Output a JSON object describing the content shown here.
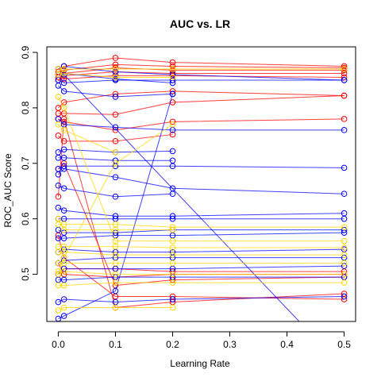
{
  "chart_data": {
    "type": "line",
    "title": "AUC vs. LR",
    "xlabel": "Learning Rate",
    "ylabel": "ROC_AUC Score",
    "xlim": [
      -0.02,
      0.52
    ],
    "ylim": [
      0.415,
      0.91
    ],
    "x_ticks": [
      0.0,
      0.1,
      0.2,
      0.3,
      0.4,
      0.5
    ],
    "x_tick_labels": [
      "0.0",
      "0.1",
      "0.2",
      "0.3",
      "0.4",
      "0.5"
    ],
    "y_ticks": [
      0.5,
      0.6,
      0.7,
      0.8,
      0.9
    ],
    "y_tick_labels": [
      "0.5",
      "0.6",
      "0.7",
      "0.8",
      "0.9"
    ],
    "grid": false,
    "colors": {
      "red": "#ff0000",
      "blue": "#0000ff",
      "gold": "#ffd700"
    },
    "series": [
      {
        "color": "red",
        "x": [
          0.0,
          0.01,
          0.1,
          0.2,
          0.5
        ],
        "y": [
          0.87,
          0.875,
          0.89,
          0.882,
          0.875
        ]
      },
      {
        "color": "red",
        "x": [
          0.0,
          0.01,
          0.1,
          0.2,
          0.5
        ],
        "y": [
          0.865,
          0.868,
          0.878,
          0.875,
          0.872
        ]
      },
      {
        "color": "red",
        "x": [
          0.0,
          0.01,
          0.1,
          0.2,
          0.5
        ],
        "y": [
          0.86,
          0.862,
          0.872,
          0.868,
          0.868
        ]
      },
      {
        "color": "red",
        "x": [
          0.0,
          0.01,
          0.1,
          0.2,
          0.5
        ],
        "y": [
          0.855,
          0.858,
          0.865,
          0.862,
          0.862
        ]
      },
      {
        "color": "red",
        "x": [
          0.0,
          0.01,
          0.1,
          0.2,
          0.5
        ],
        "y": [
          0.85,
          0.852,
          0.858,
          0.858,
          0.855
        ]
      },
      {
        "color": "red",
        "x": [
          0.0,
          0.01,
          0.1,
          0.2,
          0.5
        ],
        "y": [
          0.8,
          0.81,
          0.825,
          0.83,
          0.822
        ]
      },
      {
        "color": "red",
        "x": [
          0.0,
          0.01,
          0.1,
          0.2,
          0.5
        ],
        "y": [
          0.79,
          0.79,
          0.788,
          0.81,
          0.822
        ]
      },
      {
        "color": "red",
        "x": [
          0.0,
          0.01,
          0.1,
          0.2,
          0.5
        ],
        "y": [
          0.78,
          0.775,
          0.76,
          0.775,
          0.78
        ]
      },
      {
        "color": "red",
        "x": [
          0.0,
          0.01,
          0.1,
          0.2
        ],
        "y": [
          0.75,
          0.74,
          0.74,
          0.752
        ]
      },
      {
        "color": "red",
        "x": [
          0.0,
          0.01,
          0.1,
          0.2,
          0.5
        ],
        "y": [
          0.69,
          0.7,
          0.48,
          0.49,
          0.495
        ]
      },
      {
        "color": "red",
        "x": [
          0.0,
          0.01,
          0.1,
          0.2,
          0.5
        ],
        "y": [
          0.64,
          0.78,
          0.44,
          0.45,
          0.465
        ]
      },
      {
        "color": "red",
        "x": [
          0.0,
          0.01,
          0.1,
          0.2,
          0.5
        ],
        "y": [
          0.57,
          0.53,
          0.46,
          0.46,
          0.455
        ]
      },
      {
        "color": "red",
        "x": [
          0.0,
          0.01,
          0.1,
          0.2,
          0.5
        ],
        "y": [
          0.52,
          0.5,
          0.495,
          0.5,
          0.5
        ]
      },
      {
        "color": "red",
        "x": [
          0.0,
          0.01,
          0.1,
          0.2,
          0.5
        ],
        "y": [
          0.5,
          0.51,
          0.51,
          0.505,
          0.505
        ]
      },
      {
        "color": "blue",
        "x": [
          0.0,
          0.01,
          0.1,
          0.2,
          0.5
        ],
        "y": [
          0.87,
          0.875,
          0.865,
          0.86,
          0.85
        ]
      },
      {
        "color": "blue",
        "x": [
          0.0,
          0.01,
          0.1,
          0.2
        ],
        "y": [
          0.86,
          0.862,
          0.852,
          0.845
        ]
      },
      {
        "color": "blue",
        "x": [
          0.0,
          0.01,
          0.1,
          0.2,
          0.5
        ],
        "y": [
          0.85,
          0.845,
          0.85,
          0.85,
          0.85
        ]
      },
      {
        "color": "blue",
        "x": [
          0.0,
          0.01,
          0.1,
          0.2
        ],
        "y": [
          0.84,
          0.83,
          0.82,
          0.825
        ]
      },
      {
        "color": "blue",
        "x": [
          0.0,
          0.01,
          0.1,
          0.2,
          0.5
        ],
        "y": [
          0.78,
          0.77,
          0.765,
          0.76,
          0.76
        ]
      },
      {
        "color": "blue",
        "x": [
          0.0,
          0.01,
          0.1,
          0.2
        ],
        "y": [
          0.72,
          0.725,
          0.72,
          0.722
        ]
      },
      {
        "color": "blue",
        "x": [
          0.0,
          0.01,
          0.1,
          0.2
        ],
        "y": [
          0.71,
          0.71,
          0.705,
          0.705
        ]
      },
      {
        "color": "blue",
        "x": [
          0.0,
          0.01,
          0.1,
          0.2,
          0.5
        ],
        "y": [
          0.69,
          0.695,
          0.695,
          0.695,
          0.692
        ]
      },
      {
        "color": "blue",
        "x": [
          0.0,
          0.01,
          0.1,
          0.2,
          0.5
        ],
        "y": [
          0.68,
          0.69,
          0.675,
          0.655,
          0.645
        ]
      },
      {
        "color": "blue",
        "x": [
          0.0,
          0.01,
          0.1,
          0.2
        ],
        "y": [
          0.66,
          0.655,
          0.64,
          0.645
        ]
      },
      {
        "color": "blue",
        "x": [
          0.0,
          0.01,
          0.1,
          0.2,
          0.5
        ],
        "y": [
          0.62,
          0.615,
          0.605,
          0.605,
          0.61
        ]
      },
      {
        "color": "blue",
        "x": [
          0.0,
          0.01,
          0.1,
          0.2,
          0.5
        ],
        "y": [
          0.6,
          0.6,
          0.6,
          0.6,
          0.6
        ]
      },
      {
        "color": "blue",
        "x": [
          0.0,
          0.01,
          0.1,
          0.2,
          0.5
        ],
        "y": [
          0.58,
          0.575,
          0.575,
          0.58,
          0.58
        ]
      },
      {
        "color": "blue",
        "x": [
          0.0,
          0.01,
          0.1,
          0.2,
          0.5
        ],
        "y": [
          0.565,
          0.565,
          0.57,
          0.57,
          0.575
        ]
      },
      {
        "color": "blue",
        "x": [
          0.0,
          0.01,
          0.1,
          0.2,
          0.5
        ],
        "y": [
          0.54,
          0.545,
          0.54,
          0.54,
          0.545
        ]
      },
      {
        "color": "blue",
        "x": [
          0.0,
          0.01,
          0.1,
          0.2,
          0.5
        ],
        "y": [
          0.52,
          0.525,
          0.53,
          0.53,
          0.53
        ]
      },
      {
        "color": "blue",
        "x": [
          0.0,
          0.01,
          0.1,
          0.2,
          0.5
        ],
        "y": [
          0.5,
          0.51,
          0.51,
          0.51,
          0.515
        ]
      },
      {
        "color": "blue",
        "x": [
          0.0,
          0.01,
          0.1,
          0.2,
          0.5
        ],
        "y": [
          0.49,
          0.49,
          0.495,
          0.495,
          0.495
        ]
      },
      {
        "color": "blue",
        "x": [
          0.0,
          0.01,
          0.1,
          0.2,
          0.5
        ],
        "y": [
          0.45,
          0.455,
          0.45,
          0.455,
          0.46
        ]
      },
      {
        "color": "blue",
        "x": [
          0.0,
          0.01,
          0.1,
          0.2
        ],
        "y": [
          0.42,
          0.425,
          0.47,
          0.825
        ]
      },
      {
        "color": "blue",
        "x": [
          0.0,
          0.01,
          0.5
        ],
        "y": [
          0.86,
          0.86,
          0.33
        ]
      },
      {
        "color": "gold",
        "x": [
          0.0,
          0.01,
          0.1,
          0.2,
          0.5
        ],
        "y": [
          0.87,
          0.87,
          0.87,
          0.87,
          0.87
        ]
      },
      {
        "color": "gold",
        "x": [
          0.0,
          0.01,
          0.1,
          0.2
        ],
        "y": [
          0.86,
          0.862,
          0.855,
          0.855
        ]
      },
      {
        "color": "gold",
        "x": [
          0.0,
          0.01,
          0.1,
          0.2,
          0.5
        ],
        "y": [
          0.82,
          0.8,
          0.56,
          0.56,
          0.56
        ]
      },
      {
        "color": "gold",
        "x": [
          0.0,
          0.01,
          0.1
        ],
        "y": [
          0.77,
          0.76,
          0.72
        ]
      },
      {
        "color": "gold",
        "x": [
          0.0,
          0.01,
          0.1,
          0.2
        ],
        "y": [
          0.6,
          0.58,
          0.58,
          0.58
        ]
      },
      {
        "color": "gold",
        "x": [
          0.0,
          0.01,
          0.1,
          0.2,
          0.5
        ],
        "y": [
          0.59,
          0.59,
          0.59,
          0.585,
          0.585
        ]
      },
      {
        "color": "gold",
        "x": [
          0.0,
          0.01,
          0.1,
          0.2,
          0.5
        ],
        "y": [
          0.55,
          0.55,
          0.55,
          0.548,
          0.548
        ]
      },
      {
        "color": "gold",
        "x": [
          0.0,
          0.01,
          0.1,
          0.2,
          0.5
        ],
        "y": [
          0.54,
          0.54,
          0.535,
          0.535,
          0.535
        ]
      },
      {
        "color": "gold",
        "x": [
          0.0,
          0.01,
          0.1,
          0.2,
          0.5
        ],
        "y": [
          0.52,
          0.52,
          0.52,
          0.52,
          0.52
        ]
      },
      {
        "color": "gold",
        "x": [
          0.0,
          0.01,
          0.1,
          0.2,
          0.5
        ],
        "y": [
          0.505,
          0.505,
          0.5,
          0.5,
          0.5
        ]
      },
      {
        "color": "gold",
        "x": [
          0.0,
          0.01,
          0.1,
          0.2,
          0.5
        ],
        "y": [
          0.48,
          0.48,
          0.485,
          0.485,
          0.485
        ]
      },
      {
        "color": "gold",
        "x": [
          0.0,
          0.01,
          0.1,
          0.2
        ],
        "y": [
          0.435,
          0.44,
          0.44,
          0.44
        ]
      },
      {
        "color": "gold",
        "x": [
          0.0,
          0.01,
          0.1,
          0.2
        ],
        "y": [
          0.5,
          0.53,
          0.7,
          0.77
        ]
      }
    ]
  }
}
